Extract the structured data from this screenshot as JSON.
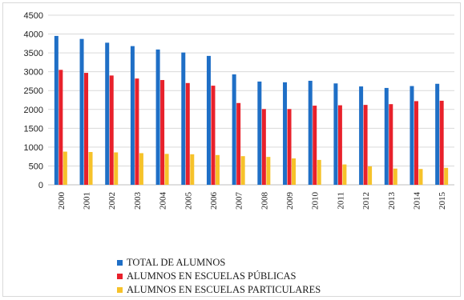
{
  "chart_data": {
    "type": "bar",
    "categories": [
      "2000",
      "2001",
      "2002",
      "2003",
      "2004",
      "2005",
      "2006",
      "2007",
      "2008",
      "2009",
      "2010",
      "2011",
      "2012",
      "2013",
      "2014",
      "2015"
    ],
    "series": [
      {
        "name": "TOTAL DE ALUMNOS",
        "color": "#1f6fc6",
        "values": [
          3950,
          3870,
          3770,
          3680,
          3590,
          3510,
          3420,
          2930,
          2740,
          2720,
          2760,
          2690,
          2610,
          2570,
          2620,
          2680
        ]
      },
      {
        "name": "ALUMNOS EN ESCUELAS PÚBLICAS",
        "color": "#e8212b",
        "values": [
          3050,
          2970,
          2900,
          2820,
          2780,
          2700,
          2630,
          2170,
          2010,
          2010,
          2100,
          2110,
          2120,
          2140,
          2220,
          2230
        ]
      },
      {
        "name": "ALUMNOS EN ESCUELAS PARTICULARES",
        "color": "#f6c22a",
        "values": [
          880,
          870,
          860,
          840,
          820,
          810,
          790,
          760,
          740,
          700,
          660,
          540,
          490,
          430,
          420,
          450
        ]
      }
    ],
    "yticks": [
      0,
      500,
      1000,
      1500,
      2000,
      2500,
      3000,
      3500,
      4000,
      4500
    ],
    "ylim": [
      0,
      4500
    ],
    "grid": true,
    "legend_position": "bottom-center"
  }
}
